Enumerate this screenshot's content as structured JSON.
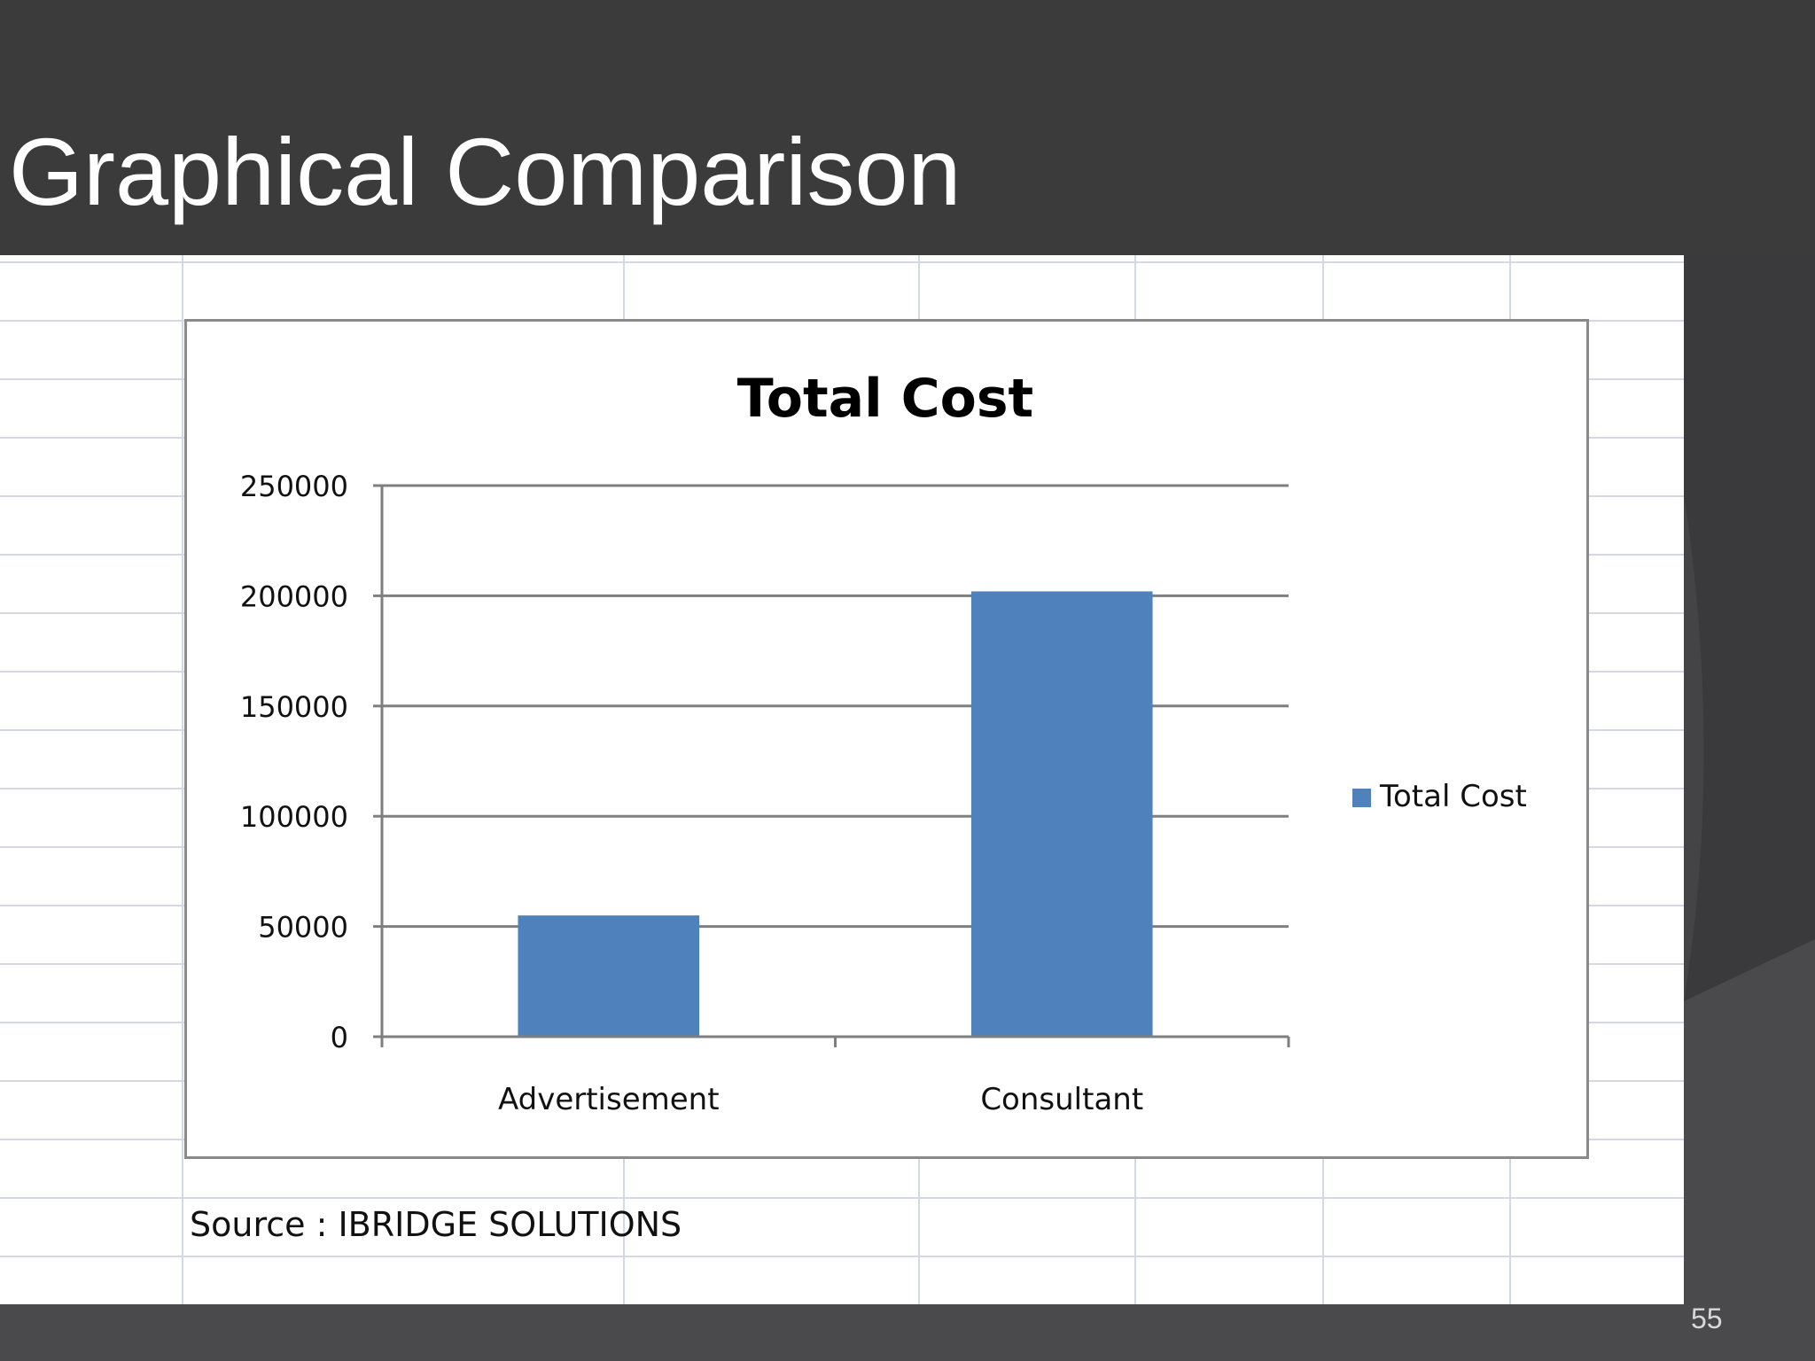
{
  "slide": {
    "title": "Graphical Comparison",
    "source": "Source : IBRIDGE SOLUTIONS",
    "page_number": "55"
  },
  "colors": {
    "bar": "#4f81bd",
    "background": "#4a4a4c",
    "title_band": "#3b3b3c",
    "gridline": "#7f7f7f"
  },
  "chart_data": {
    "type": "bar",
    "title": "Total Cost",
    "categories": [
      "Advertisement",
      "Consultant"
    ],
    "series": [
      {
        "name": "Total Cost",
        "values": [
          55000,
          202000
        ]
      }
    ],
    "ylim": [
      0,
      250000
    ],
    "yticks": [
      "0",
      "50000",
      "100000",
      "150000",
      "200000",
      "250000"
    ],
    "grid": true,
    "legend": "right"
  }
}
